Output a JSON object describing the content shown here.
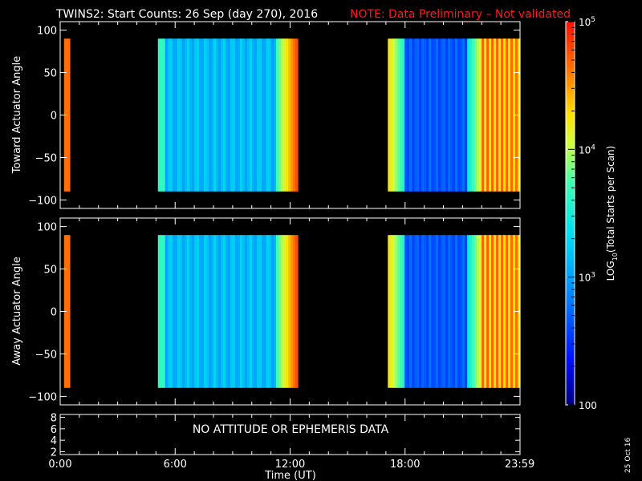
{
  "header": {
    "title": "TWINS2: Start Counts: 26 Sep (day 270), 2016",
    "note": "NOTE: Data Preliminary – Not validated",
    "note_color": "#ff1a1a"
  },
  "chart_data": [
    {
      "type": "heatmap",
      "ylabel": "Toward Actuator Angle",
      "ylim": [
        -110,
        110
      ],
      "yticks": [
        "100",
        "50",
        "0",
        "−50",
        "−100"
      ],
      "ytick_values": [
        100,
        50,
        0,
        -50,
        -100
      ],
      "xlim": [
        0,
        24
      ],
      "data_angle_range": [
        -90,
        90
      ],
      "blocks": [
        {
          "start_h": 0.2,
          "end_h": 0.5
        },
        {
          "start_h": 5.1,
          "end_h": 12.4
        },
        {
          "start_h": 17.1,
          "end_h": 24.0
        }
      ]
    },
    {
      "type": "heatmap",
      "ylabel": "Away Actuator Angle",
      "ylim": [
        -110,
        110
      ],
      "yticks": [
        "100",
        "50",
        "0",
        "−50",
        "−100"
      ],
      "ytick_values": [
        100,
        50,
        0,
        -50,
        -100
      ],
      "xlim": [
        0,
        24
      ],
      "data_angle_range": [
        -90,
        90
      ],
      "blocks": [
        {
          "start_h": 0.2,
          "end_h": 0.5
        },
        {
          "start_h": 5.1,
          "end_h": 12.4
        },
        {
          "start_h": 17.1,
          "end_h": 24.0
        }
      ]
    }
  ],
  "ephemeris_panel": {
    "message": "NO ATTITUDE OR EPHEMERIS DATA",
    "yticks": [
      "8",
      "6",
      "4",
      "2"
    ],
    "ytick_values": [
      8,
      6,
      4,
      2
    ],
    "ylim": [
      1.5,
      8.5
    ]
  },
  "xaxis": {
    "label": "Time (UT)",
    "ticks": [
      "0:00",
      "6:00",
      "12:00",
      "18:00",
      "23:59"
    ],
    "tick_values": [
      0,
      6,
      12,
      18,
      23.983
    ]
  },
  "colorbar": {
    "label_main": "LOG",
    "label_sub": "10",
    "label_rest": "(Total Starts per Scan)",
    "scale": "log",
    "range": [
      100,
      100000
    ],
    "ticks": [
      {
        "value": 100,
        "base": "100",
        "exp": ""
      },
      {
        "value": 1000,
        "base": "10",
        "exp": "3"
      },
      {
        "value": 10000,
        "base": "10",
        "exp": "4"
      },
      {
        "value": 100000,
        "base": "10",
        "exp": "5"
      }
    ]
  },
  "side_date": "25 Oct 16"
}
